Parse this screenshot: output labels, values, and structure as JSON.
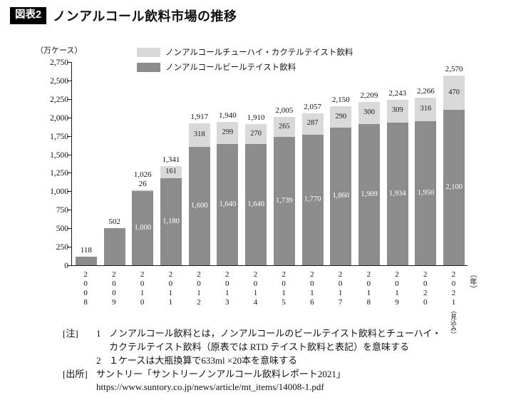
{
  "header": {
    "tag": "図表2",
    "title": "ノンアルコール飲料市場の推移"
  },
  "chart_data": {
    "type": "bar",
    "stacked": true,
    "title": "ノンアルコール飲料市場の推移",
    "ylabel": "（万ケース）",
    "xlabel": "（年）",
    "ylim": [
      0,
      2750
    ],
    "ytick_step": 250,
    "ytick_labels": [
      "0",
      "250",
      "500",
      "750",
      "1,000",
      "1,250",
      "1,500",
      "1,750",
      "2,000",
      "2,250",
      "2,500",
      "2,750"
    ],
    "grid": false,
    "legend_position": "top",
    "categories": [
      "2008",
      "2009",
      "2010",
      "2011",
      "2012",
      "2013",
      "2014",
      "2015",
      "2016",
      "2017",
      "2018",
      "2019",
      "2020",
      "2021"
    ],
    "last_category_suffix": "（見込み）",
    "axis_unit_suffix": "（年）",
    "series": [
      {
        "name": "ノンアルコールチューハイ・カクテルテイスト飲料",
        "color": "#d9d9d9",
        "text_color": "#1a1a1a",
        "values": [
          0,
          0,
          26,
          161,
          318,
          299,
          270,
          265,
          287,
          290,
          300,
          309,
          316,
          470
        ],
        "labels": [
          "",
          "",
          "26",
          "161",
          "318",
          "299",
          "270",
          "265",
          "287",
          "290",
          "300",
          "309",
          "316",
          "470"
        ]
      },
      {
        "name": "ノンアルコールビールテイスト飲料",
        "color": "#8c8c8c",
        "text_color": "#ffffff",
        "values": [
          118,
          502,
          1000,
          1180,
          1600,
          1640,
          1640,
          1739,
          1770,
          1860,
          1909,
          1934,
          1950,
          2100
        ],
        "labels": [
          "",
          "",
          "1,000",
          "1,180",
          "1,600",
          "1,640",
          "1,640",
          "1,739",
          "1,770",
          "1,860",
          "1,909",
          "1,934",
          "1,950",
          "2,100"
        ]
      }
    ],
    "totals": [
      118,
      502,
      1026,
      1341,
      1917,
      1940,
      1910,
      2005,
      2057,
      2150,
      2209,
      2243,
      2266,
      2570
    ],
    "total_labels": [
      "118",
      "502",
      "1,026",
      "1,341",
      "1,917",
      "1,940",
      "1,910",
      "2,005",
      "2,057",
      "2,150",
      "2,209",
      "2,243",
      "2,266",
      "2,570"
    ]
  },
  "notes": {
    "rows": [
      {
        "label": "[注]",
        "num": "1",
        "text": "ノンアルコール飲料とは，ノンアルコールのビールテイスト飲料とチューハイ・カクテルテイスト飲料（原表では RTD テイスト飲料と表記）を意味する"
      },
      {
        "label": "",
        "num": "2",
        "text": "１ケースは大瓶換算で633ml ×20本を意味する"
      },
      {
        "label": "[出所]",
        "num": "",
        "text": "サントリー「サントリーノンアルコール飲料レポート2021」"
      },
      {
        "label": "",
        "num": "",
        "text": "https://www.suntory.co.jp/news/article/mt_items/14008-1.pdf"
      }
    ]
  }
}
